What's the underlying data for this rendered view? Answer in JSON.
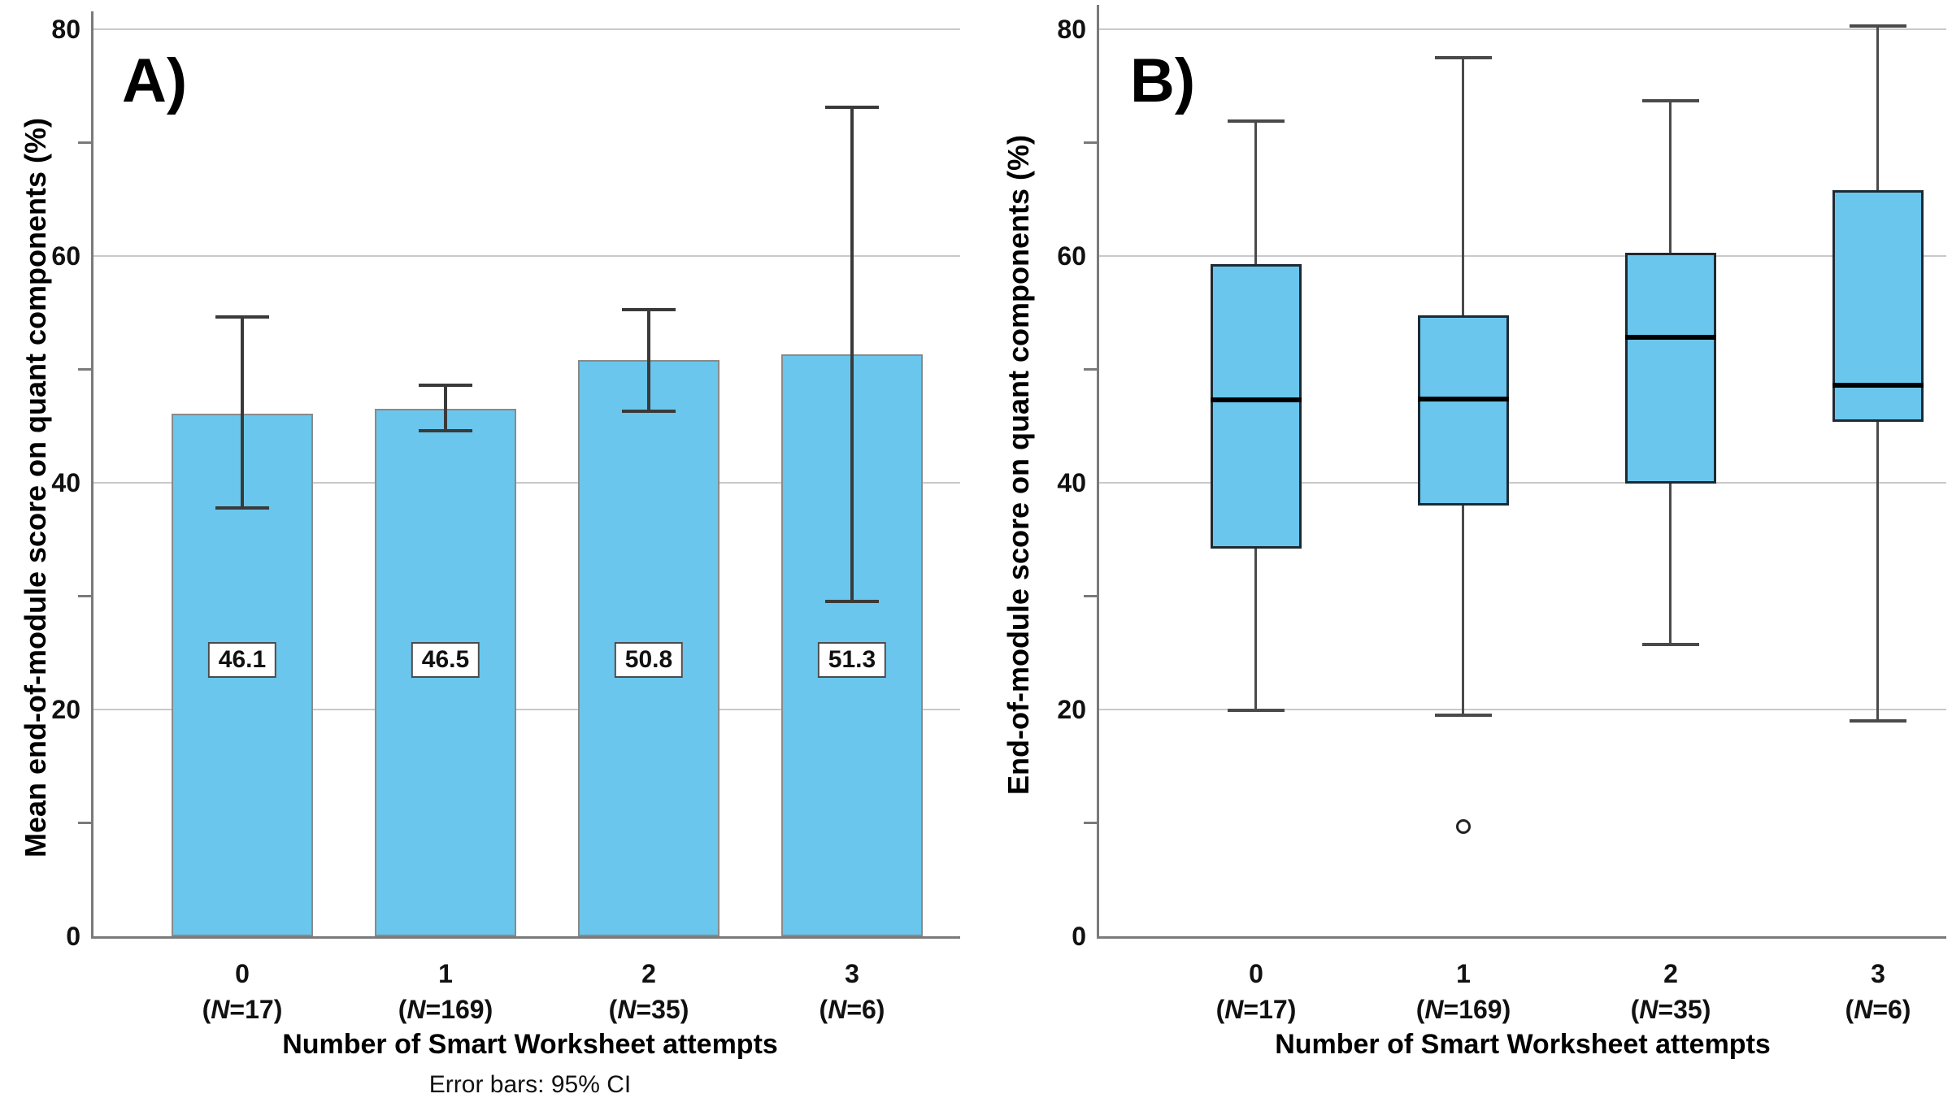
{
  "chart_data": [
    {
      "panel": "A)",
      "type": "bar",
      "ylabel": "Mean end-of-module score on quant components (%)",
      "xlabel": "Number of Smart Worksheet attempts",
      "footnote": "Error bars: 95% CI",
      "ylim": [
        0,
        82
      ],
      "yticks": [
        0,
        20,
        40,
        60,
        80
      ],
      "minor_yticks": [
        10,
        30,
        50,
        70
      ],
      "grid": true,
      "legend": "none",
      "categories": [
        "0",
        "1",
        "2",
        "3"
      ],
      "n_prefix": "N",
      "n_labels": [
        "17",
        "169",
        "35",
        "6"
      ],
      "values": [
        46.1,
        46.5,
        50.8,
        51.3
      ],
      "bar_labels": [
        "46.1",
        "46.5",
        "50.8",
        "51.3"
      ],
      "ci_low": [
        37.8,
        44.6,
        46.3,
        29.5
      ],
      "ci_high": [
        54.6,
        48.6,
        55.3,
        73.1
      ]
    },
    {
      "panel": "B)",
      "type": "box",
      "ylabel": "End-of-module score on quant components (%)",
      "xlabel": "Number of Smart Worksheet attempts",
      "ylim": [
        0,
        82
      ],
      "yticks": [
        0,
        20,
        40,
        60,
        80
      ],
      "minor_yticks": [
        10,
        30,
        50,
        70
      ],
      "grid": true,
      "legend": "none",
      "categories": [
        "0",
        "1",
        "2",
        "3"
      ],
      "n_prefix": "N",
      "n_labels": [
        "17",
        "169",
        "35",
        "6"
      ],
      "boxes": [
        {
          "whisker_low": 19.9,
          "q1": 34.2,
          "median": 47.3,
          "q3": 59.3,
          "whisker_high": 71.9,
          "outliers": []
        },
        {
          "whisker_low": 19.5,
          "q1": 38.0,
          "median": 47.4,
          "q3": 54.8,
          "whisker_high": 77.5,
          "outliers": [
            9.7
          ]
        },
        {
          "whisker_low": 25.7,
          "q1": 39.9,
          "median": 52.8,
          "q3": 60.3,
          "whisker_high": 73.7,
          "outliers": []
        },
        {
          "whisker_low": 19.0,
          "q1": 45.4,
          "median": 48.6,
          "q3": 65.8,
          "whisker_high": 80.3,
          "outliers": []
        }
      ]
    }
  ],
  "colors": {
    "fill": "#6AC6EC",
    "bar_border": "#8A8A8A",
    "box_border": "#1E2A33",
    "error_bar": "#3A3A3A",
    "whisker": "#4A4A4A",
    "median": "#000000",
    "gridline": "#C9C9C9",
    "axis": "#7A7A7A",
    "text": "#111111",
    "label_box_border": "#4A4A4A",
    "label_box_bg": "#FFFFFF"
  }
}
